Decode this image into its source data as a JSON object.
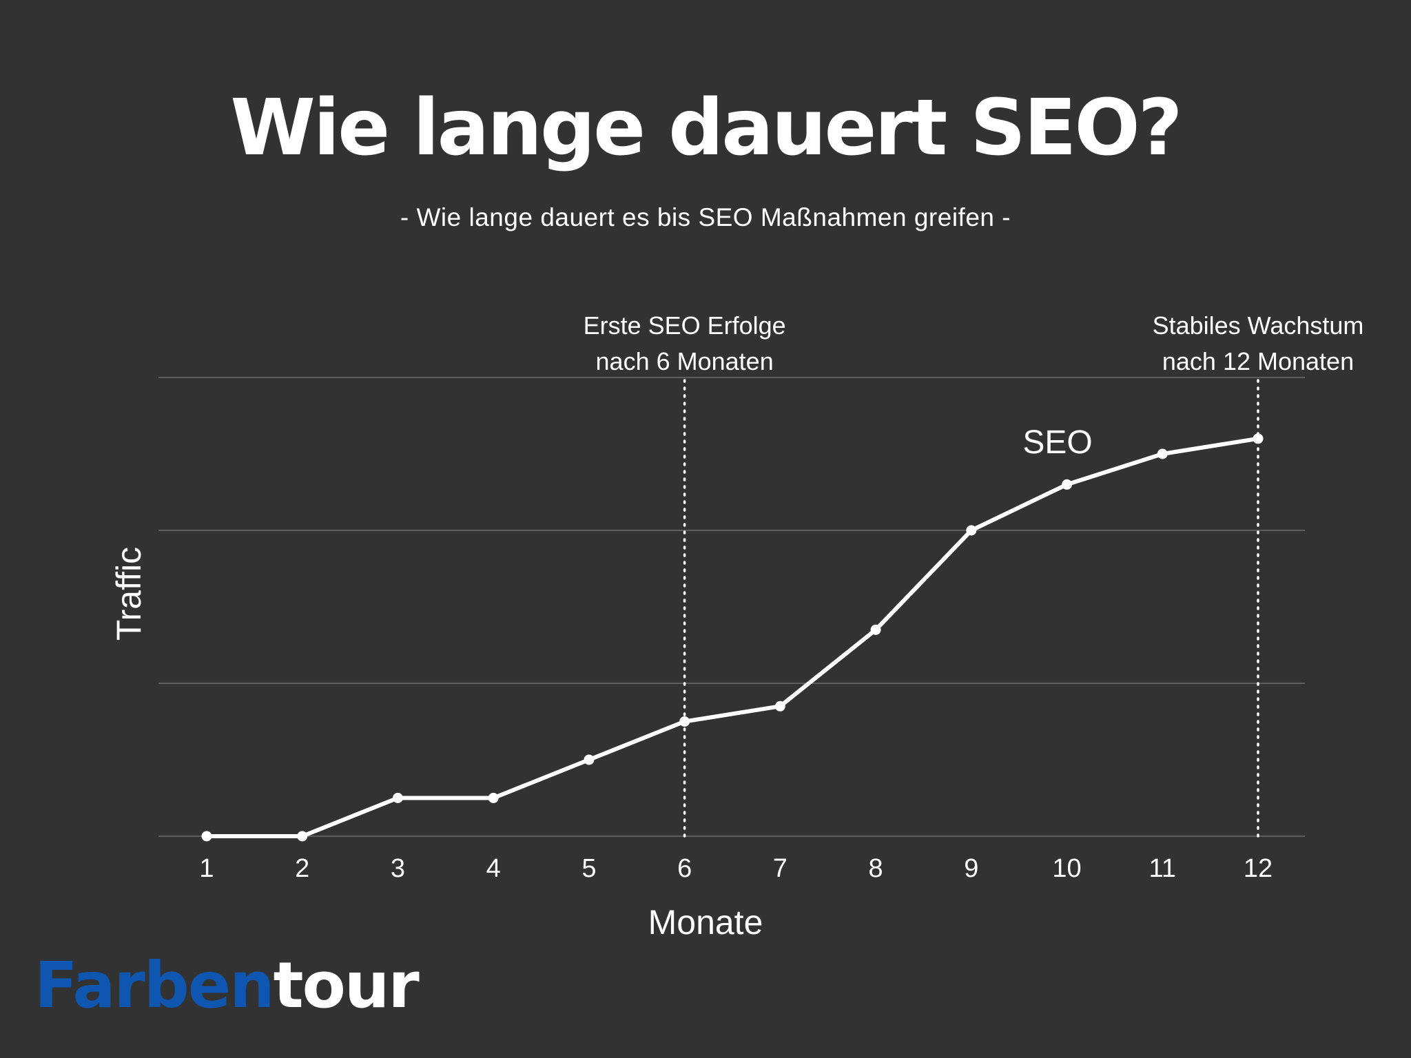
{
  "header": {
    "title": "Wie lange dauert SEO?",
    "subtitle": "- Wie lange dauert es bis SEO Maßnahmen greifen -"
  },
  "logo": {
    "part1": "Farben",
    "part2": "tour",
    "color_part1": "#0e56b0",
    "color_part2": "#ffffff"
  },
  "colors": {
    "background": "#323232",
    "line": "#ffffff",
    "grid": "#5e5e5e"
  },
  "chart_data": {
    "type": "line",
    "title": "Wie lange dauert SEO?",
    "subtitle": "- Wie lange dauert es bis SEO Maßnahmen greifen -",
    "xlabel": "Monate",
    "ylabel": "Traffic",
    "x": [
      1,
      2,
      3,
      4,
      5,
      6,
      7,
      8,
      9,
      10,
      11,
      12
    ],
    "xticks": [
      "1",
      "2",
      "3",
      "4",
      "5",
      "6",
      "7",
      "8",
      "9",
      "10",
      "11",
      "12"
    ],
    "series": [
      {
        "name": "SEO",
        "values": [
          0,
          0,
          0.25,
          0.25,
          0.5,
          0.75,
          0.85,
          1.35,
          2.0,
          2.3,
          2.5,
          2.6
        ]
      }
    ],
    "ylim": [
      0,
      3
    ],
    "yticks_shown": false,
    "grid": true,
    "annotations": [
      {
        "x": 6,
        "lines": [
          "Erste SEO Erfolge",
          "nach 6 Monaten"
        ]
      },
      {
        "x": 12,
        "lines": [
          "Stabiles Wachstum",
          "nach 12 Monaten"
        ]
      }
    ]
  }
}
